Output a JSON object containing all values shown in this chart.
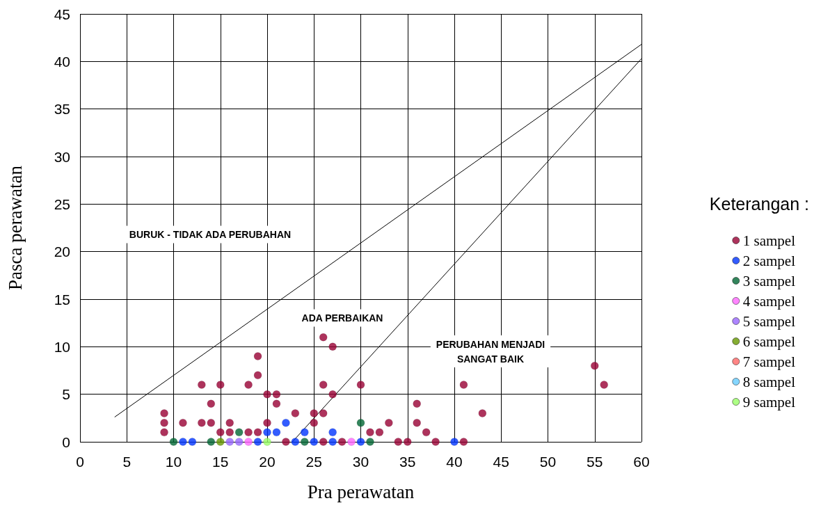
{
  "chart_data": {
    "type": "scatter",
    "xlabel": "Pra perawatan",
    "ylabel": "Pasca perawatan",
    "legend_title": "Keterangan :",
    "legend": "right",
    "grid": true,
    "marker": "circle",
    "xlim": [
      0,
      60
    ],
    "xticks": [
      0,
      5,
      10,
      15,
      20,
      25,
      30,
      35,
      40,
      45,
      50,
      55,
      60
    ],
    "ylim": [
      0,
      45
    ],
    "yticks": [
      0,
      5,
      10,
      15,
      20,
      25,
      30,
      35,
      40,
      45
    ],
    "annotations": [
      "BURUK - TIDAK ADA PERUBAHAN",
      "ADA PERBAIKAN",
      "PERUBAHAN MENJADI\nSANGAT BAIK"
    ],
    "series": [
      {
        "name": "1 sampel",
        "color": "#990033",
        "x": [
          9,
          9,
          9,
          11,
          13,
          13,
          14,
          14,
          15,
          15,
          16,
          16,
          18,
          18,
          19,
          19,
          19,
          20,
          20,
          21,
          21,
          22,
          23,
          25,
          25,
          26,
          26,
          26,
          26,
          27,
          27,
          28,
          30,
          31,
          32,
          33,
          34,
          35,
          36,
          36,
          37,
          38,
          41,
          41,
          43,
          55,
          56
        ],
        "values": [
          1,
          2,
          3,
          2,
          2,
          6,
          2,
          4,
          1,
          6,
          1,
          2,
          1,
          6,
          1,
          7,
          9,
          2,
          5,
          4,
          5,
          0,
          3,
          2,
          3,
          0,
          3,
          6,
          11,
          5,
          10,
          0,
          6,
          1,
          1,
          2,
          0,
          0,
          2,
          4,
          1,
          0,
          0,
          6,
          3,
          8,
          6
        ]
      },
      {
        "name": "2 sampel",
        "color": "#0033ff",
        "x": [
          11,
          12,
          19,
          20,
          21,
          22,
          23,
          24,
          25,
          27,
          27,
          30,
          40
        ],
        "values": [
          0,
          0,
          0,
          1,
          1,
          2,
          0,
          1,
          0,
          0,
          1,
          0,
          0
        ]
      },
      {
        "name": "3 sampel",
        "color": "#006633",
        "x": [
          10,
          14,
          17,
          24,
          30,
          31
        ],
        "values": [
          0,
          0,
          1,
          0,
          2,
          0
        ]
      },
      {
        "name": "4 sampel",
        "color": "#ff66ff",
        "x": [
          18,
          29
        ],
        "values": [
          0,
          0
        ]
      },
      {
        "name": "5 sampel",
        "color": "#9966ff",
        "x": [
          16,
          17
        ],
        "values": [
          0,
          0
        ]
      },
      {
        "name": "6 sampel",
        "color": "#669900",
        "x": [
          15
        ],
        "values": [
          0
        ]
      },
      {
        "name": "7 sampel",
        "color": "#ff6666"
      },
      {
        "name": "8 sampel",
        "color": "#66ccff"
      },
      {
        "name": "9 sampel",
        "color": "#99ff66",
        "x": [
          20
        ],
        "values": [
          0
        ]
      },
      {
        "type": "line",
        "color": "#000000",
        "marker": "none",
        "x": [
          3.7,
          60
        ],
        "values": [
          2.6,
          41.8
        ]
      },
      {
        "type": "line",
        "color": "#000000",
        "marker": "none",
        "x": [
          22.7,
          60
        ],
        "values": [
          0,
          40.3
        ]
      }
    ]
  }
}
